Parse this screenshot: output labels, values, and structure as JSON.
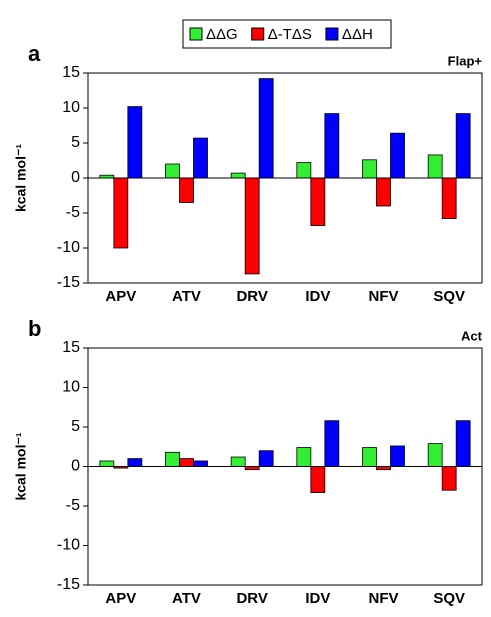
{
  "chart_data": [
    {
      "type": "bar",
      "label": "a",
      "title": "Flap+",
      "ylabel": "kcal mol⁻¹",
      "categories": [
        "APV",
        "ATV",
        "DRV",
        "IDV",
        "NFV",
        "SQV"
      ],
      "series": [
        {
          "name": "ΔΔG",
          "color": "#33ee33",
          "values": [
            0.4,
            2.0,
            0.7,
            2.2,
            2.6,
            3.3
          ]
        },
        {
          "name": "Δ-TΔS",
          "color": "#ff0000",
          "values": [
            -10.0,
            -3.5,
            -13.7,
            -6.8,
            -4.0,
            -5.8
          ]
        },
        {
          "name": "ΔΔH",
          "color": "#0000ff",
          "values": [
            10.2,
            5.7,
            14.2,
            9.2,
            6.4,
            9.2
          ]
        }
      ],
      "ylim": [
        -15,
        15
      ],
      "yticks": [
        -15,
        -10,
        -5,
        0,
        5,
        10,
        15
      ]
    },
    {
      "type": "bar",
      "label": "b",
      "title": "Act",
      "ylabel": "kcal mol⁻¹",
      "categories": [
        "APV",
        "ATV",
        "DRV",
        "IDV",
        "NFV",
        "SQV"
      ],
      "series": [
        {
          "color": "#33ee33",
          "values": [
            0.7,
            1.8,
            1.2,
            2.4,
            2.4,
            2.9
          ]
        },
        {
          "color": "#ff0000",
          "values": [
            -0.2,
            1.0,
            -0.4,
            -3.3,
            -0.4,
            -3.0
          ]
        },
        {
          "color": "#0000ff",
          "values": [
            1.0,
            0.7,
            2.0,
            5.8,
            2.6,
            5.8
          ]
        }
      ],
      "ylim": [
        -15,
        15
      ],
      "yticks": [
        -15,
        -10,
        -5,
        0,
        5,
        10,
        15
      ]
    }
  ]
}
